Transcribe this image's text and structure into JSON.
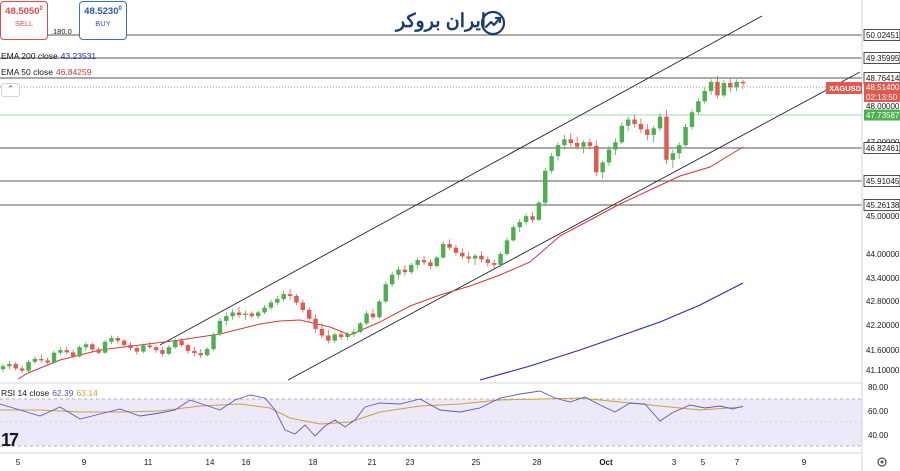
{
  "header": {
    "sell_price": "48.5050",
    "sell_price_sup": "0",
    "sell_label": "SELL",
    "spread": "180.0",
    "buy_price": "48.5230",
    "buy_price_sup": "0",
    "buy_label": "BUY",
    "ema200_label": "EMA 200 close",
    "ema200_value": "43.23531",
    "ema50_label": "EMA 50 close",
    "ema50_value": "46.84259",
    "rsi_label": "RSI 14 close",
    "rsi_value": "62.39",
    "rsi_ma_value": "63.14",
    "logo_text": "ایران بروکر",
    "collapse_glyph": "⌃",
    "tv_logo_text": "17"
  },
  "colors": {
    "up": "#4caf50",
    "down": "#e05a52",
    "ema50": "#d0393a",
    "ema200": "#2131a4",
    "rsi": "#5b57c9",
    "rsi_ma": "#c8a23c",
    "symbol_tag": "#e05a52",
    "green_tag": "#4caf50"
  },
  "chart_data": {
    "type": "candlestick",
    "symbol": "XAGUSD",
    "last_price": "48.51400",
    "countdown": "02:13:50",
    "y_ticks": [
      "48.00000",
      "47.00000",
      "45.00000",
      "44.00000",
      "43.40000",
      "42.80000",
      "42.20000",
      "41.60000",
      "41.10000"
    ],
    "x_ticks": [
      "5",
      "9",
      "11",
      "14",
      "16",
      "18",
      "21",
      "23",
      "25",
      "28",
      "Oct",
      "3",
      "5",
      "7",
      "9"
    ],
    "levels": [
      {
        "value": "50.02451",
        "color": "dark"
      },
      {
        "value": "49.35995",
        "color": "dark"
      },
      {
        "value": "48.76414",
        "color": "dark"
      },
      {
        "value": "47.73587",
        "color": "green"
      },
      {
        "value": "46.82461",
        "color": "dark"
      },
      {
        "value": "45.91045",
        "color": "dark"
      },
      {
        "value": "45.26138",
        "color": "dark"
      }
    ],
    "candles": [
      [
        40.7,
        40.85,
        40.62,
        40.78
      ],
      [
        40.78,
        40.92,
        40.7,
        40.84
      ],
      [
        40.84,
        40.9,
        40.66,
        40.72
      ],
      [
        40.72,
        40.8,
        40.6,
        40.66
      ],
      [
        40.66,
        40.95,
        40.62,
        40.9
      ],
      [
        40.9,
        41.05,
        40.85,
        40.98
      ],
      [
        40.98,
        41.1,
        40.88,
        40.94
      ],
      [
        40.94,
        41.02,
        40.82,
        40.88
      ],
      [
        40.88,
        41.2,
        40.85,
        41.15
      ],
      [
        41.15,
        41.3,
        41.08,
        41.22
      ],
      [
        41.22,
        41.32,
        41.1,
        41.16
      ],
      [
        41.16,
        41.24,
        41.0,
        41.05
      ],
      [
        41.05,
        41.35,
        41.02,
        41.3
      ],
      [
        41.3,
        41.45,
        41.2,
        41.38
      ],
      [
        41.38,
        41.42,
        41.18,
        41.24
      ],
      [
        41.24,
        41.3,
        41.1,
        41.15
      ],
      [
        41.15,
        41.5,
        41.12,
        41.45
      ],
      [
        41.45,
        41.62,
        41.38,
        41.55
      ],
      [
        41.55,
        41.6,
        41.4,
        41.48
      ],
      [
        41.48,
        41.52,
        41.3,
        41.36
      ],
      [
        41.36,
        41.44,
        41.2,
        41.28
      ],
      [
        41.28,
        41.35,
        41.1,
        41.18
      ],
      [
        41.18,
        41.4,
        41.14,
        41.35
      ],
      [
        41.35,
        41.45,
        41.25,
        41.3
      ],
      [
        41.3,
        41.35,
        41.15,
        41.22
      ],
      [
        41.22,
        41.3,
        41.05,
        41.12
      ],
      [
        41.12,
        41.36,
        41.08,
        41.3
      ],
      [
        41.3,
        41.55,
        41.25,
        41.48
      ],
      [
        41.48,
        41.55,
        41.3,
        41.36
      ],
      [
        41.36,
        41.4,
        41.12,
        41.2
      ],
      [
        41.2,
        41.3,
        41.05,
        41.14
      ],
      [
        41.14,
        41.25,
        41.0,
        41.08
      ],
      [
        41.08,
        41.3,
        41.05,
        41.25
      ],
      [
        41.25,
        41.7,
        41.2,
        41.65
      ],
      [
        41.65,
        42.1,
        41.6,
        42.02
      ],
      [
        42.02,
        42.25,
        41.9,
        42.15
      ],
      [
        42.15,
        42.35,
        42.05,
        42.25
      ],
      [
        42.25,
        42.4,
        42.1,
        42.18
      ],
      [
        42.18,
        42.3,
        42.05,
        42.22
      ],
      [
        42.22,
        42.28,
        42.1,
        42.15
      ],
      [
        42.15,
        42.3,
        42.08,
        42.25
      ],
      [
        42.25,
        42.45,
        42.2,
        42.38
      ],
      [
        42.38,
        42.6,
        42.32,
        42.52
      ],
      [
        42.52,
        42.7,
        42.45,
        42.62
      ],
      [
        42.62,
        42.85,
        42.55,
        42.75
      ],
      [
        42.75,
        42.9,
        42.6,
        42.7
      ],
      [
        42.7,
        42.75,
        42.45,
        42.52
      ],
      [
        42.52,
        42.6,
        42.25,
        42.32
      ],
      [
        42.32,
        42.4,
        42.0,
        42.08
      ],
      [
        42.08,
        42.2,
        41.7,
        41.8
      ],
      [
        41.8,
        41.95,
        41.55,
        41.62
      ],
      [
        41.62,
        41.78,
        41.4,
        41.48
      ],
      [
        41.48,
        41.7,
        41.42,
        41.65
      ],
      [
        41.65,
        41.75,
        41.5,
        41.58
      ],
      [
        41.58,
        41.72,
        41.5,
        41.66
      ],
      [
        41.66,
        41.8,
        41.58,
        41.72
      ],
      [
        41.72,
        42.0,
        41.68,
        41.95
      ],
      [
        41.95,
        42.3,
        41.9,
        42.22
      ],
      [
        42.22,
        42.35,
        42.05,
        42.12
      ],
      [
        42.12,
        42.6,
        42.08,
        42.55
      ],
      [
        42.55,
        43.1,
        42.5,
        43.02
      ],
      [
        43.02,
        43.35,
        42.95,
        43.28
      ],
      [
        43.28,
        43.5,
        43.15,
        43.42
      ],
      [
        43.42,
        43.55,
        43.25,
        43.35
      ],
      [
        43.35,
        43.6,
        43.3,
        43.55
      ],
      [
        43.55,
        43.75,
        43.45,
        43.68
      ],
      [
        43.68,
        43.8,
        43.55,
        43.62
      ],
      [
        43.62,
        43.7,
        43.45,
        43.52
      ],
      [
        43.52,
        43.8,
        43.48,
        43.75
      ],
      [
        43.75,
        44.2,
        43.72,
        44.12
      ],
      [
        44.12,
        44.25,
        43.95,
        44.02
      ],
      [
        44.02,
        44.1,
        43.8,
        43.88
      ],
      [
        43.88,
        44.0,
        43.7,
        43.78
      ],
      [
        43.78,
        43.9,
        43.6,
        43.72
      ],
      [
        43.72,
        43.85,
        43.55,
        43.8
      ],
      [
        43.8,
        43.92,
        43.62,
        43.7
      ],
      [
        43.7,
        43.78,
        43.5,
        43.6
      ],
      [
        43.6,
        43.7,
        43.45,
        43.55
      ],
      [
        43.55,
        43.9,
        43.5,
        43.85
      ],
      [
        43.85,
        44.3,
        43.8,
        44.22
      ],
      [
        44.22,
        44.65,
        44.18,
        44.58
      ],
      [
        44.58,
        44.8,
        44.45,
        44.72
      ],
      [
        44.72,
        44.95,
        44.65,
        44.88
      ],
      [
        44.88,
        45.0,
        44.7,
        44.78
      ],
      [
        44.78,
        45.3,
        44.75,
        45.25
      ],
      [
        45.25,
        46.2,
        45.2,
        46.12
      ],
      [
        46.12,
        46.6,
        46.05,
        46.52
      ],
      [
        46.52,
        46.9,
        46.4,
        46.82
      ],
      [
        46.82,
        47.1,
        46.7,
        46.98
      ],
      [
        46.98,
        47.15,
        46.78,
        46.88
      ],
      [
        46.88,
        47.05,
        46.7,
        46.78
      ],
      [
        46.78,
        46.95,
        46.6,
        46.9
      ],
      [
        46.9,
        47.0,
        46.7,
        46.8
      ],
      [
        46.8,
        46.95,
        45.98,
        46.08
      ],
      [
        46.08,
        46.4,
        45.9,
        46.35
      ],
      [
        46.35,
        46.8,
        46.25,
        46.7
      ],
      [
        46.7,
        47.0,
        46.55,
        46.9
      ],
      [
        46.9,
        47.45,
        46.85,
        47.35
      ],
      [
        47.35,
        47.6,
        47.2,
        47.52
      ],
      [
        47.52,
        47.65,
        47.3,
        47.4
      ],
      [
        47.4,
        47.55,
        47.15,
        47.25
      ],
      [
        47.25,
        47.4,
        46.95,
        47.1
      ],
      [
        47.1,
        47.35,
        46.9,
        47.28
      ],
      [
        47.28,
        47.7,
        47.2,
        47.6
      ],
      [
        47.6,
        47.78,
        46.3,
        46.42
      ],
      [
        46.42,
        46.7,
        46.2,
        46.6
      ],
      [
        46.6,
        46.9,
        46.45,
        46.82
      ],
      [
        46.82,
        47.4,
        46.78,
        47.32
      ],
      [
        47.32,
        47.8,
        47.25,
        47.72
      ],
      [
        47.72,
        48.1,
        47.65,
        48.02
      ],
      [
        48.02,
        48.4,
        47.95,
        48.3
      ],
      [
        48.3,
        48.62,
        48.2,
        48.55
      ],
      [
        48.55,
        48.72,
        48.1,
        48.18
      ],
      [
        48.18,
        48.6,
        48.12,
        48.52
      ],
      [
        48.52,
        48.65,
        48.28,
        48.4
      ],
      [
        48.4,
        48.62,
        48.3,
        48.55
      ],
      [
        48.55,
        48.6,
        48.36,
        48.51
      ]
    ],
    "ema50_points": [
      [
        18,
        379
      ],
      [
        28,
        373
      ],
      [
        60,
        360
      ],
      [
        100,
        350
      ],
      [
        140,
        345
      ],
      [
        180,
        340
      ],
      [
        220,
        334
      ],
      [
        260,
        324
      ],
      [
        280,
        321
      ],
      [
        300,
        320
      ],
      [
        330,
        327
      ],
      [
        350,
        335
      ],
      [
        380,
        322
      ],
      [
        410,
        306
      ],
      [
        440,
        295
      ],
      [
        470,
        286
      ],
      [
        500,
        275
      ],
      [
        530,
        262
      ],
      [
        560,
        236
      ],
      [
        590,
        220
      ],
      [
        620,
        204
      ],
      [
        650,
        190
      ],
      [
        680,
        176
      ],
      [
        710,
        167
      ],
      [
        743,
        147
      ]
    ],
    "ema200_points": [
      [
        480,
        380
      ],
      [
        530,
        366
      ],
      [
        580,
        350
      ],
      [
        620,
        336
      ],
      [
        660,
        322
      ],
      [
        700,
        305
      ],
      [
        743,
        283
      ]
    ],
    "channel_upper": [
      [
        160,
        345
      ],
      [
        762,
        16
      ]
    ],
    "channel_lower": [
      [
        288,
        380
      ],
      [
        860,
        72
      ]
    ],
    "rsi_panel": {
      "y_ticks": [
        "80.00",
        "60.00",
        "40.00"
      ],
      "upper": 70,
      "lower": 30,
      "rsi_points": [
        [
          0,
          404
        ],
        [
          20,
          410
        ],
        [
          40,
          416
        ],
        [
          60,
          407
        ],
        [
          80,
          419
        ],
        [
          100,
          414
        ],
        [
          120,
          409
        ],
        [
          140,
          416
        ],
        [
          160,
          413
        ],
        [
          175,
          410
        ],
        [
          190,
          400
        ],
        [
          205,
          405
        ],
        [
          220,
          410
        ],
        [
          235,
          400
        ],
        [
          250,
          395
        ],
        [
          265,
          398
        ],
        [
          275,
          410
        ],
        [
          285,
          430
        ],
        [
          295,
          434
        ],
        [
          305,
          425
        ],
        [
          315,
          436
        ],
        [
          325,
          426
        ],
        [
          335,
          420
        ],
        [
          345,
          427
        ],
        [
          355,
          420
        ],
        [
          365,
          407
        ],
        [
          380,
          403
        ],
        [
          400,
          404
        ],
        [
          420,
          399
        ],
        [
          440,
          410
        ],
        [
          460,
          412
        ],
        [
          480,
          408
        ],
        [
          500,
          398
        ],
        [
          520,
          394
        ],
        [
          540,
          391
        ],
        [
          555,
          398
        ],
        [
          570,
          402
        ],
        [
          585,
          397
        ],
        [
          600,
          405
        ],
        [
          615,
          412
        ],
        [
          630,
          403
        ],
        [
          645,
          404
        ],
        [
          660,
          421
        ],
        [
          672,
          413
        ],
        [
          690,
          405
        ],
        [
          705,
          408
        ],
        [
          720,
          406
        ],
        [
          733,
          409
        ],
        [
          743,
          406
        ]
      ],
      "rsi_ma_points": [
        [
          0,
          410
        ],
        [
          40,
          410
        ],
        [
          80,
          412
        ],
        [
          120,
          412
        ],
        [
          160,
          411
        ],
        [
          200,
          406
        ],
        [
          240,
          404
        ],
        [
          270,
          408
        ],
        [
          290,
          418
        ],
        [
          320,
          424
        ],
        [
          350,
          422
        ],
        [
          380,
          412
        ],
        [
          420,
          406
        ],
        [
          460,
          404
        ],
        [
          500,
          400
        ],
        [
          540,
          399
        ],
        [
          580,
          398
        ],
        [
          620,
          402
        ],
        [
          660,
          406
        ],
        [
          700,
          410
        ],
        [
          743,
          407
        ]
      ]
    }
  }
}
